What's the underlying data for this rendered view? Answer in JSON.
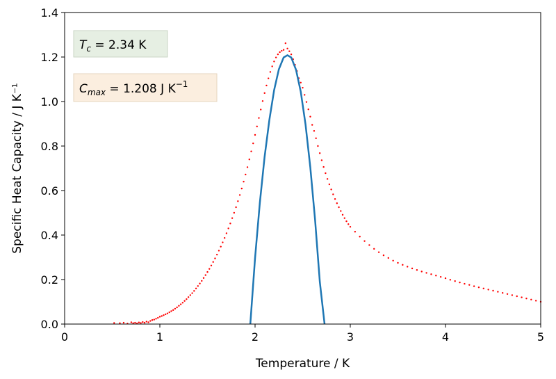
{
  "chart_data": {
    "type": "scatter",
    "xlabel": "Temperature / K",
    "ylabel": "Specific Heat Capacity / J K⁻¹",
    "xlim": [
      0,
      5
    ],
    "ylim": [
      0,
      1.4
    ],
    "xticks": [
      "0",
      "1",
      "2",
      "3",
      "4",
      "5"
    ],
    "yticks": [
      "0.0",
      "0.2",
      "0.4",
      "0.6",
      "0.8",
      "1.0",
      "1.2",
      "1.4"
    ],
    "grid": false,
    "annotations": {
      "tc_label": "T",
      "tc_sub": "c",
      "tc_value": " = 2.34 K",
      "tc_box_color": "#e6efe3",
      "cmax_label": "C",
      "cmax_sub": "max",
      "cmax_value": " = 1.208 J K",
      "cmax_sup": "−1",
      "cmax_box_color": "#fbeedf"
    },
    "series": [
      {
        "style": "points",
        "color": "#ff0000",
        "points": [
          [
            0.52,
            0.005
          ],
          [
            0.58,
            0.004
          ],
          [
            0.62,
            0.006
          ],
          [
            0.66,
            0.002
          ],
          [
            0.7,
            0.008
          ],
          [
            0.72,
            0.004
          ],
          [
            0.74,
            0.006
          ],
          [
            0.76,
            0.003
          ],
          [
            0.78,
            0.007
          ],
          [
            0.8,
            0.005
          ],
          [
            0.82,
            0.009
          ],
          [
            0.84,
            0.006
          ],
          [
            0.86,
            0.011
          ],
          [
            0.88,
            0.008
          ],
          [
            0.9,
            0.014
          ],
          [
            0.92,
            0.018
          ],
          [
            0.94,
            0.02
          ],
          [
            0.96,
            0.024
          ],
          [
            0.98,
            0.028
          ],
          [
            1.0,
            0.033
          ],
          [
            1.02,
            0.036
          ],
          [
            1.04,
            0.04
          ],
          [
            1.06,
            0.044
          ],
          [
            1.08,
            0.048
          ],
          [
            1.1,
            0.053
          ],
          [
            1.12,
            0.058
          ],
          [
            1.14,
            0.063
          ],
          [
            1.16,
            0.069
          ],
          [
            1.18,
            0.075
          ],
          [
            1.2,
            0.082
          ],
          [
            1.22,
            0.089
          ],
          [
            1.24,
            0.096
          ],
          [
            1.26,
            0.104
          ],
          [
            1.28,
            0.112
          ],
          [
            1.3,
            0.121
          ],
          [
            1.32,
            0.13
          ],
          [
            1.34,
            0.139
          ],
          [
            1.36,
            0.149
          ],
          [
            1.38,
            0.16
          ],
          [
            1.4,
            0.171
          ],
          [
            1.42,
            0.182
          ],
          [
            1.44,
            0.194
          ],
          [
            1.46,
            0.207
          ],
          [
            1.48,
            0.22
          ],
          [
            1.5,
            0.234
          ],
          [
            1.52,
            0.248
          ],
          [
            1.54,
            0.263
          ],
          [
            1.56,
            0.279
          ],
          [
            1.58,
            0.295
          ],
          [
            1.6,
            0.312
          ],
          [
            1.62,
            0.33
          ],
          [
            1.64,
            0.348
          ],
          [
            1.66,
            0.367
          ],
          [
            1.68,
            0.387
          ],
          [
            1.7,
            0.408
          ],
          [
            1.72,
            0.43
          ],
          [
            1.74,
            0.452
          ],
          [
            1.76,
            0.476
          ],
          [
            1.78,
            0.5
          ],
          [
            1.8,
            0.525
          ],
          [
            1.82,
            0.552
          ],
          [
            1.84,
            0.58
          ],
          [
            1.86,
            0.609
          ],
          [
            1.88,
            0.64
          ],
          [
            1.9,
            0.672
          ],
          [
            1.92,
            0.705
          ],
          [
            1.94,
            0.74
          ],
          [
            1.96,
            0.776
          ],
          [
            1.98,
            0.812
          ],
          [
            2.0,
            0.85
          ],
          [
            2.02,
            0.888
          ],
          [
            2.04,
            0.926
          ],
          [
            2.06,
            0.964
          ],
          [
            2.08,
            1.002
          ],
          [
            2.1,
            1.038
          ],
          [
            2.12,
            1.072
          ],
          [
            2.14,
            1.104
          ],
          [
            2.16,
            1.133
          ],
          [
            2.18,
            1.158
          ],
          [
            2.2,
            1.18
          ],
          [
            2.22,
            1.198
          ],
          [
            2.24,
            1.212
          ],
          [
            2.26,
            1.222
          ],
          [
            2.28,
            1.228
          ],
          [
            2.3,
            1.232
          ],
          [
            2.32,
            1.262
          ],
          [
            2.34,
            1.238
          ],
          [
            2.36,
            1.226
          ],
          [
            2.38,
            1.212
          ],
          [
            2.4,
            1.19
          ],
          [
            2.42,
            1.165
          ],
          [
            2.44,
            1.137
          ],
          [
            2.46,
            1.105
          ],
          [
            2.48,
            1.085
          ],
          [
            2.5,
            1.062
          ],
          [
            2.52,
            1.03
          ],
          [
            2.54,
            0.998
          ],
          [
            2.56,
            0.965
          ],
          [
            2.58,
            0.932
          ],
          [
            2.6,
            0.895
          ],
          [
            2.62,
            0.868
          ],
          [
            2.64,
            0.835
          ],
          [
            2.66,
            0.8
          ],
          [
            2.68,
            0.768
          ],
          [
            2.7,
            0.736
          ],
          [
            2.72,
            0.706
          ],
          [
            2.74,
            0.678
          ],
          [
            2.76,
            0.652
          ],
          [
            2.78,
            0.628
          ],
          [
            2.8,
            0.605
          ],
          [
            2.82,
            0.583
          ],
          [
            2.84,
            0.562
          ],
          [
            2.86,
            0.543
          ],
          [
            2.88,
            0.525
          ],
          [
            2.9,
            0.508
          ],
          [
            2.92,
            0.491
          ],
          [
            2.94,
            0.476
          ],
          [
            2.96,
            0.462
          ],
          [
            2.98,
            0.449
          ],
          [
            3.0,
            0.437
          ],
          [
            3.05,
            0.415
          ],
          [
            3.1,
            0.393
          ],
          [
            3.15,
            0.373
          ],
          [
            3.2,
            0.355
          ],
          [
            3.25,
            0.338
          ],
          [
            3.3,
            0.323
          ],
          [
            3.35,
            0.309
          ],
          [
            3.4,
            0.297
          ],
          [
            3.45,
            0.285
          ],
          [
            3.5,
            0.275
          ],
          [
            3.55,
            0.266
          ],
          [
            3.6,
            0.258
          ],
          [
            3.65,
            0.25
          ],
          [
            3.7,
            0.243
          ],
          [
            3.75,
            0.236
          ],
          [
            3.8,
            0.23
          ],
          [
            3.85,
            0.224
          ],
          [
            3.9,
            0.218
          ],
          [
            3.95,
            0.212
          ],
          [
            4.0,
            0.206
          ],
          [
            4.05,
            0.199
          ],
          [
            4.1,
            0.193
          ],
          [
            4.15,
            0.187
          ],
          [
            4.2,
            0.181
          ],
          [
            4.25,
            0.176
          ],
          [
            4.3,
            0.17
          ],
          [
            4.35,
            0.165
          ],
          [
            4.4,
            0.16
          ],
          [
            4.45,
            0.155
          ],
          [
            4.5,
            0.15
          ],
          [
            4.55,
            0.145
          ],
          [
            4.6,
            0.14
          ],
          [
            4.65,
            0.135
          ],
          [
            4.7,
            0.13
          ],
          [
            4.75,
            0.125
          ],
          [
            4.8,
            0.12
          ],
          [
            4.85,
            0.115
          ],
          [
            4.9,
            0.11
          ],
          [
            4.95,
            0.105
          ],
          [
            5.0,
            0.1
          ]
        ]
      },
      {
        "style": "line",
        "color": "#1f77b4",
        "x": [
          1.95,
          2.0,
          2.05,
          2.1,
          2.15,
          2.2,
          2.25,
          2.3,
          2.34,
          2.38,
          2.43,
          2.48,
          2.53,
          2.58,
          2.63,
          2.68,
          2.73
        ],
        "y": [
          0.0,
          0.297,
          0.544,
          0.751,
          0.917,
          1.051,
          1.145,
          1.198,
          1.208,
          1.198,
          1.143,
          1.044,
          0.897,
          0.705,
          0.47,
          0.19,
          0.0
        ]
      }
    ]
  }
}
